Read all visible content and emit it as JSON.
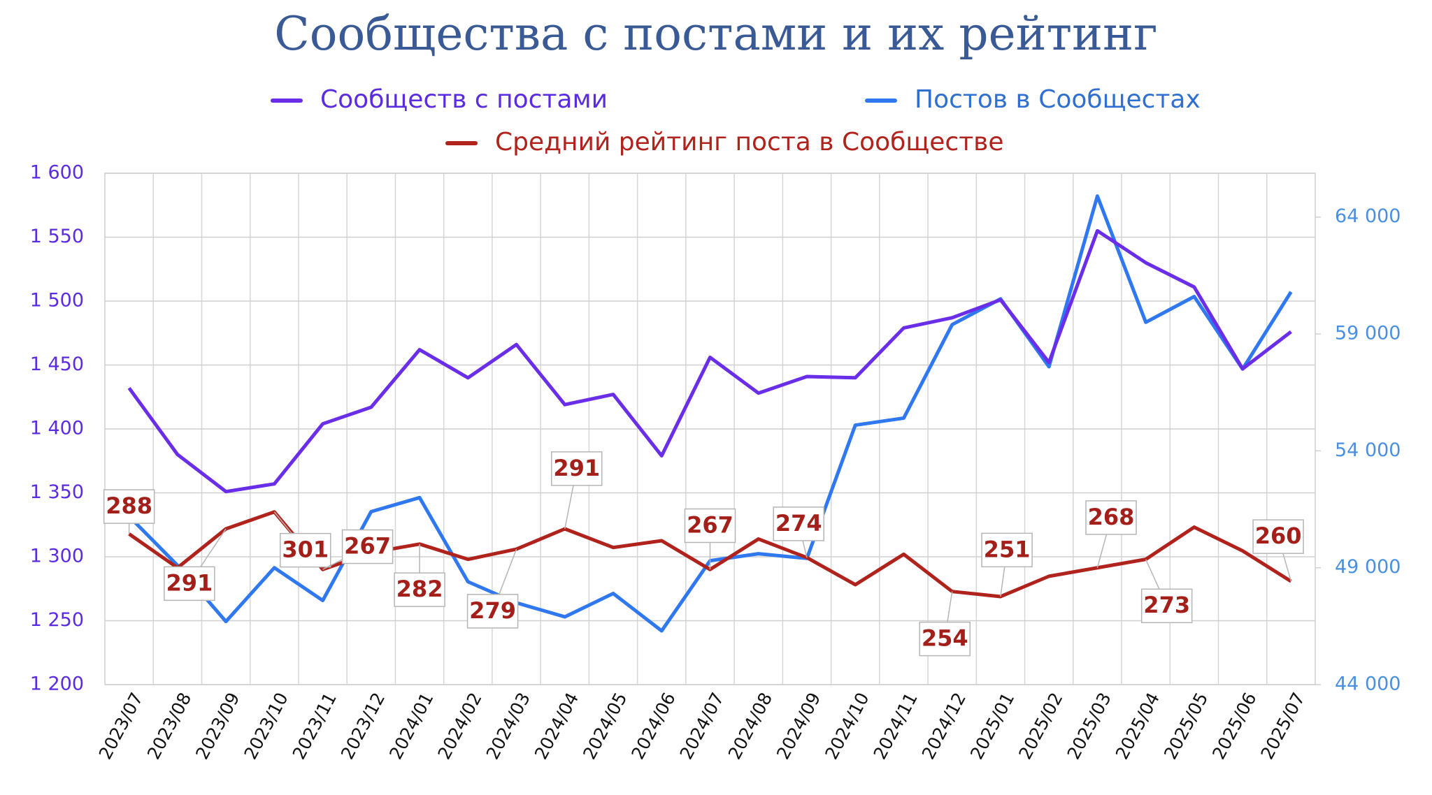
{
  "chart_data": {
    "type": "line",
    "title": "Сообщества с постами и их рейтинг",
    "categories": [
      "2023/07",
      "2023/08",
      "2023/09",
      "2023/10",
      "2023/11",
      "2023/12",
      "2024/01",
      "2024/02",
      "2024/03",
      "2024/04",
      "2024/05",
      "2024/06",
      "2024/07",
      "2024/08",
      "2024/09",
      "2024/10",
      "2024/11",
      "2024/12",
      "2025/01",
      "2025/02",
      "2025/03",
      "2025/04",
      "2025/05",
      "2025/06",
      "2025/07"
    ],
    "series": [
      {
        "name": "Сообществ с постами",
        "color": "#6a2ee8",
        "axis": "y",
        "values": [
          1432,
          1380,
          1351,
          1357,
          1404,
          1417,
          1462,
          1440,
          1466,
          1419,
          1427,
          1379,
          1456,
          1428,
          1441,
          1440,
          1479,
          1487,
          1501,
          1452,
          1555,
          1530,
          1511,
          1447,
          1476
        ]
      },
      {
        "name": "Постов в Сообщестах",
        "color": "#2f78f0",
        "axis": "y2",
        "values": [
          51200,
          49100,
          46700,
          49000,
          47600,
          51400,
          52000,
          48400,
          47500,
          46900,
          47900,
          46300,
          49300,
          49600,
          49400,
          55100,
          55400,
          59400,
          60500,
          57600,
          64900,
          59500,
          60600,
          57500,
          60800
        ]
      },
      {
        "name": "Средний рейтинг поста в Сообществе",
        "color": "#b0221c",
        "axis": "y3",
        "values": [
          288,
          268,
          291,
          301,
          267,
          277,
          282,
          273,
          279,
          291,
          280,
          284,
          267,
          285,
          274,
          258,
          276,
          254,
          251,
          263,
          268,
          273,
          292,
          278,
          260
        ],
        "value_labels": [
          "288",
          null,
          "291",
          "301",
          "267",
          null,
          "282",
          null,
          "279",
          "291",
          null,
          null,
          "267",
          null,
          "274",
          null,
          null,
          "254",
          "251",
          null,
          "268",
          "273",
          null,
          null,
          "260"
        ]
      }
    ],
    "ylim": [
      1200,
      1600
    ],
    "yticks": [
      {
        "value": 1200,
        "label": "1 200"
      },
      {
        "value": 1250,
        "label": "1 250"
      },
      {
        "value": 1300,
        "label": "1 300"
      },
      {
        "value": 1350,
        "label": "1 350"
      },
      {
        "value": 1400,
        "label": "1 400"
      },
      {
        "value": 1450,
        "label": "1 450"
      },
      {
        "value": 1500,
        "label": "1 500"
      },
      {
        "value": 1550,
        "label": "1 550"
      },
      {
        "value": 1600,
        "label": "1 600"
      }
    ],
    "y2lim": [
      44000,
      65875
    ],
    "y2ticks": [
      {
        "value": 44000,
        "label": "44 000"
      },
      {
        "value": 49000,
        "label": "49 000"
      },
      {
        "value": 54000,
        "label": "54 000"
      },
      {
        "value": 59000,
        "label": "59 000"
      },
      {
        "value": 64000,
        "label": "64 000"
      }
    ],
    "y3lim": [
      199,
      501
    ],
    "grid": true
  }
}
